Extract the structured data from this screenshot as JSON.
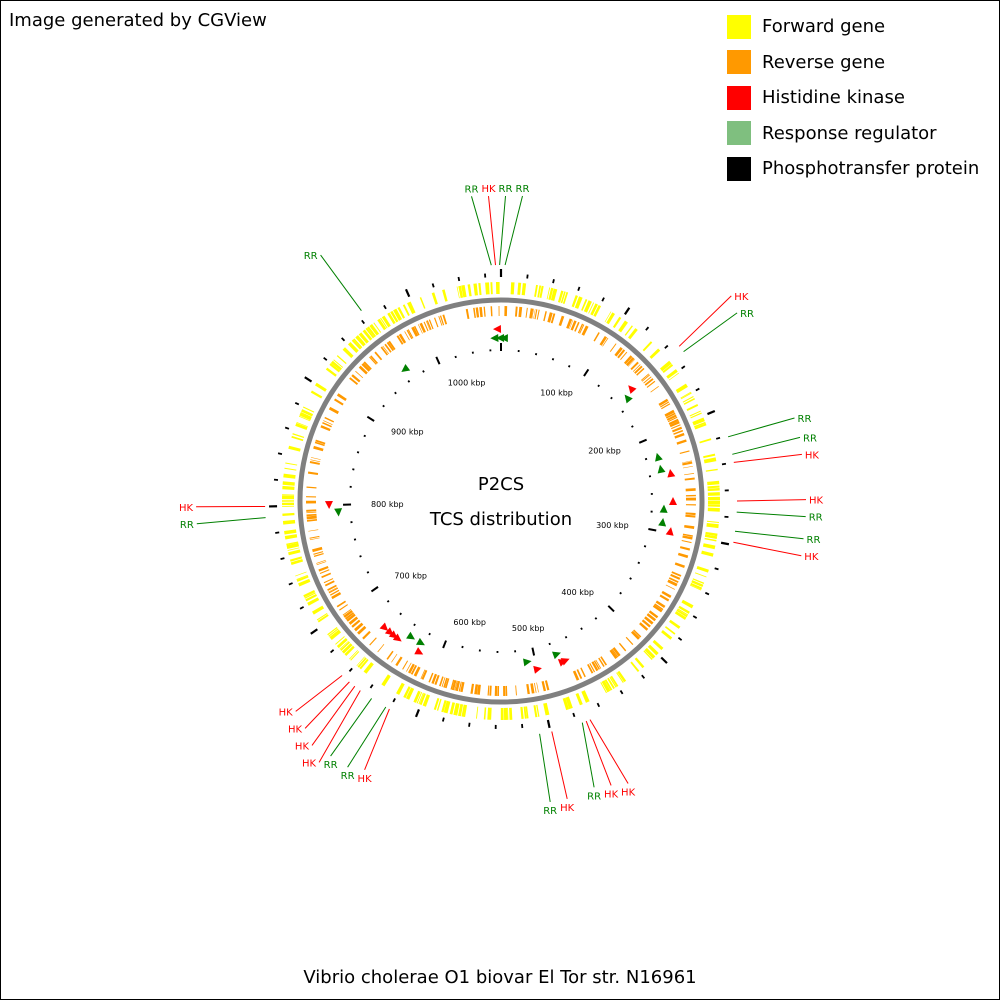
{
  "credit": "Image generated by CGView",
  "legend": [
    {
      "label": "Forward gene",
      "color": "#ffff00"
    },
    {
      "label": "Reverse gene",
      "color": "#ff9900"
    },
    {
      "label": "Histidine kinase",
      "color": "#ff0000"
    },
    {
      "label": "Response regulator",
      "color": "#7fbf7f"
    },
    {
      "label": "Phosphotransfer protein",
      "color": "#000000"
    }
  ],
  "center": {
    "line1": "P2CS",
    "line2": "TCS distribution"
  },
  "organism": "Vibrio cholerae O1 biovar El Tor str. N16961",
  "genome": {
    "length_kbp": 1072
  },
  "ruler": {
    "major_labels": [
      "100 kbp",
      "200 kbp",
      "300 kbp",
      "400 kbp",
      "500 kbp",
      "600 kbp",
      "700 kbp",
      "800 kbp",
      "900 kbp",
      "1000 kbp"
    ],
    "major_values_kbp": [
      100,
      200,
      300,
      400,
      500,
      600,
      700,
      800,
      900,
      1000
    ]
  },
  "colors": {
    "forward": "#ffff00",
    "reverse": "#ff9900",
    "hk": "#ff0000",
    "rr": "#008000",
    "backbone": "#808080"
  },
  "features": [
    {
      "kbp": 1065,
      "type": "RR",
      "label": "RR"
    },
    {
      "kbp": 1068,
      "type": "HK",
      "label": "HK"
    },
    {
      "kbp": 1071,
      "type": "RR",
      "label": "RR"
    },
    {
      "kbp": 3,
      "type": "RR",
      "label": "RR"
    },
    {
      "kbp": 146,
      "type": "HK",
      "label": "HK"
    },
    {
      "kbp": 151,
      "type": "RR",
      "label": "RR"
    },
    {
      "kbp": 221,
      "type": "RR",
      "label": "RR"
    },
    {
      "kbp": 234,
      "type": "RR",
      "label": "RR"
    },
    {
      "kbp": 240,
      "type": "HK",
      "label": "HK"
    },
    {
      "kbp": 268,
      "type": "HK",
      "label": "HK"
    },
    {
      "kbp": 276,
      "type": "RR",
      "label": "RR"
    },
    {
      "kbp": 290,
      "type": "RR",
      "label": "RR"
    },
    {
      "kbp": 298,
      "type": "HK",
      "label": "HK"
    },
    {
      "kbp": 470,
      "type": "HK",
      "label": "HK"
    },
    {
      "kbp": 473,
      "type": "HK",
      "label": "HK"
    },
    {
      "kbp": 476,
      "type": "RR",
      "label": "RR"
    },
    {
      "kbp": 499,
      "type": "HK",
      "label": "HK"
    },
    {
      "kbp": 508,
      "type": "RR",
      "label": "RR"
    },
    {
      "kbp": 620,
      "type": "HK",
      "label": "HK"
    },
    {
      "kbp": 623,
      "type": "RR",
      "label": "RR"
    },
    {
      "kbp": 635,
      "type": "RR",
      "label": "RR"
    },
    {
      "kbp": 645,
      "type": "HK",
      "label": "HK"
    },
    {
      "kbp": 650,
      "type": "HK",
      "label": "HK"
    },
    {
      "kbp": 655,
      "type": "HK",
      "label": "HK"
    },
    {
      "kbp": 662,
      "type": "HK",
      "label": "HK"
    },
    {
      "kbp": 792,
      "type": "RR",
      "label": "RR"
    },
    {
      "kbp": 800,
      "type": "HK",
      "label": "HK"
    },
    {
      "kbp": 964,
      "type": "RR",
      "label": "RR"
    }
  ]
}
